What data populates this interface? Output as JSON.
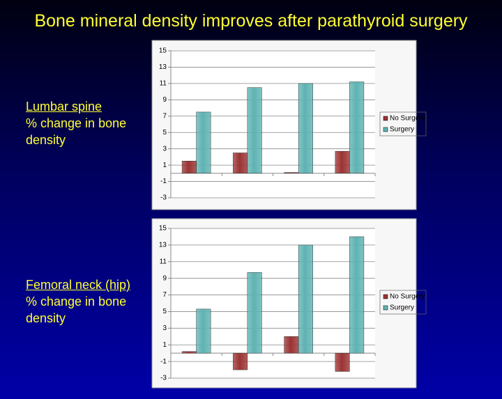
{
  "title": "Bone mineral density improves after parathyroid surgery",
  "chart_data": [
    {
      "type": "bar",
      "label_heading": "Lumbar spine",
      "label_text": "% change in bone density",
      "categories": [
        null,
        null,
        null,
        null
      ],
      "series": [
        {
          "name": "No Surgery",
          "color": "#9b3333",
          "values": [
            1.5,
            2.5,
            0.1,
            2.7
          ]
        },
        {
          "name": "Surgery",
          "color": "#5fb3b3",
          "values": [
            7.5,
            10.5,
            11,
            11.2
          ]
        }
      ],
      "ylim": [
        -3,
        15
      ],
      "yticks": [
        -3,
        -1,
        1,
        3,
        5,
        7,
        9,
        11,
        13,
        15
      ],
      "grid": true,
      "legend": "right"
    },
    {
      "type": "bar",
      "label_heading": "Femoral neck (hip)",
      "label_text": "% change in bone density",
      "categories": [
        null,
        null,
        null,
        null
      ],
      "series": [
        {
          "name": "No Surgery",
          "color": "#9b3333",
          "values": [
            0.2,
            -2,
            2,
            -2.2
          ]
        },
        {
          "name": "Surgery",
          "color": "#5fb3b3",
          "values": [
            5.3,
            9.7,
            13,
            14
          ]
        }
      ],
      "ylim": [
        -3,
        15
      ],
      "yticks": [
        -3,
        -1,
        1,
        3,
        5,
        7,
        9,
        11,
        13,
        15
      ],
      "grid": true,
      "legend": "right"
    }
  ]
}
